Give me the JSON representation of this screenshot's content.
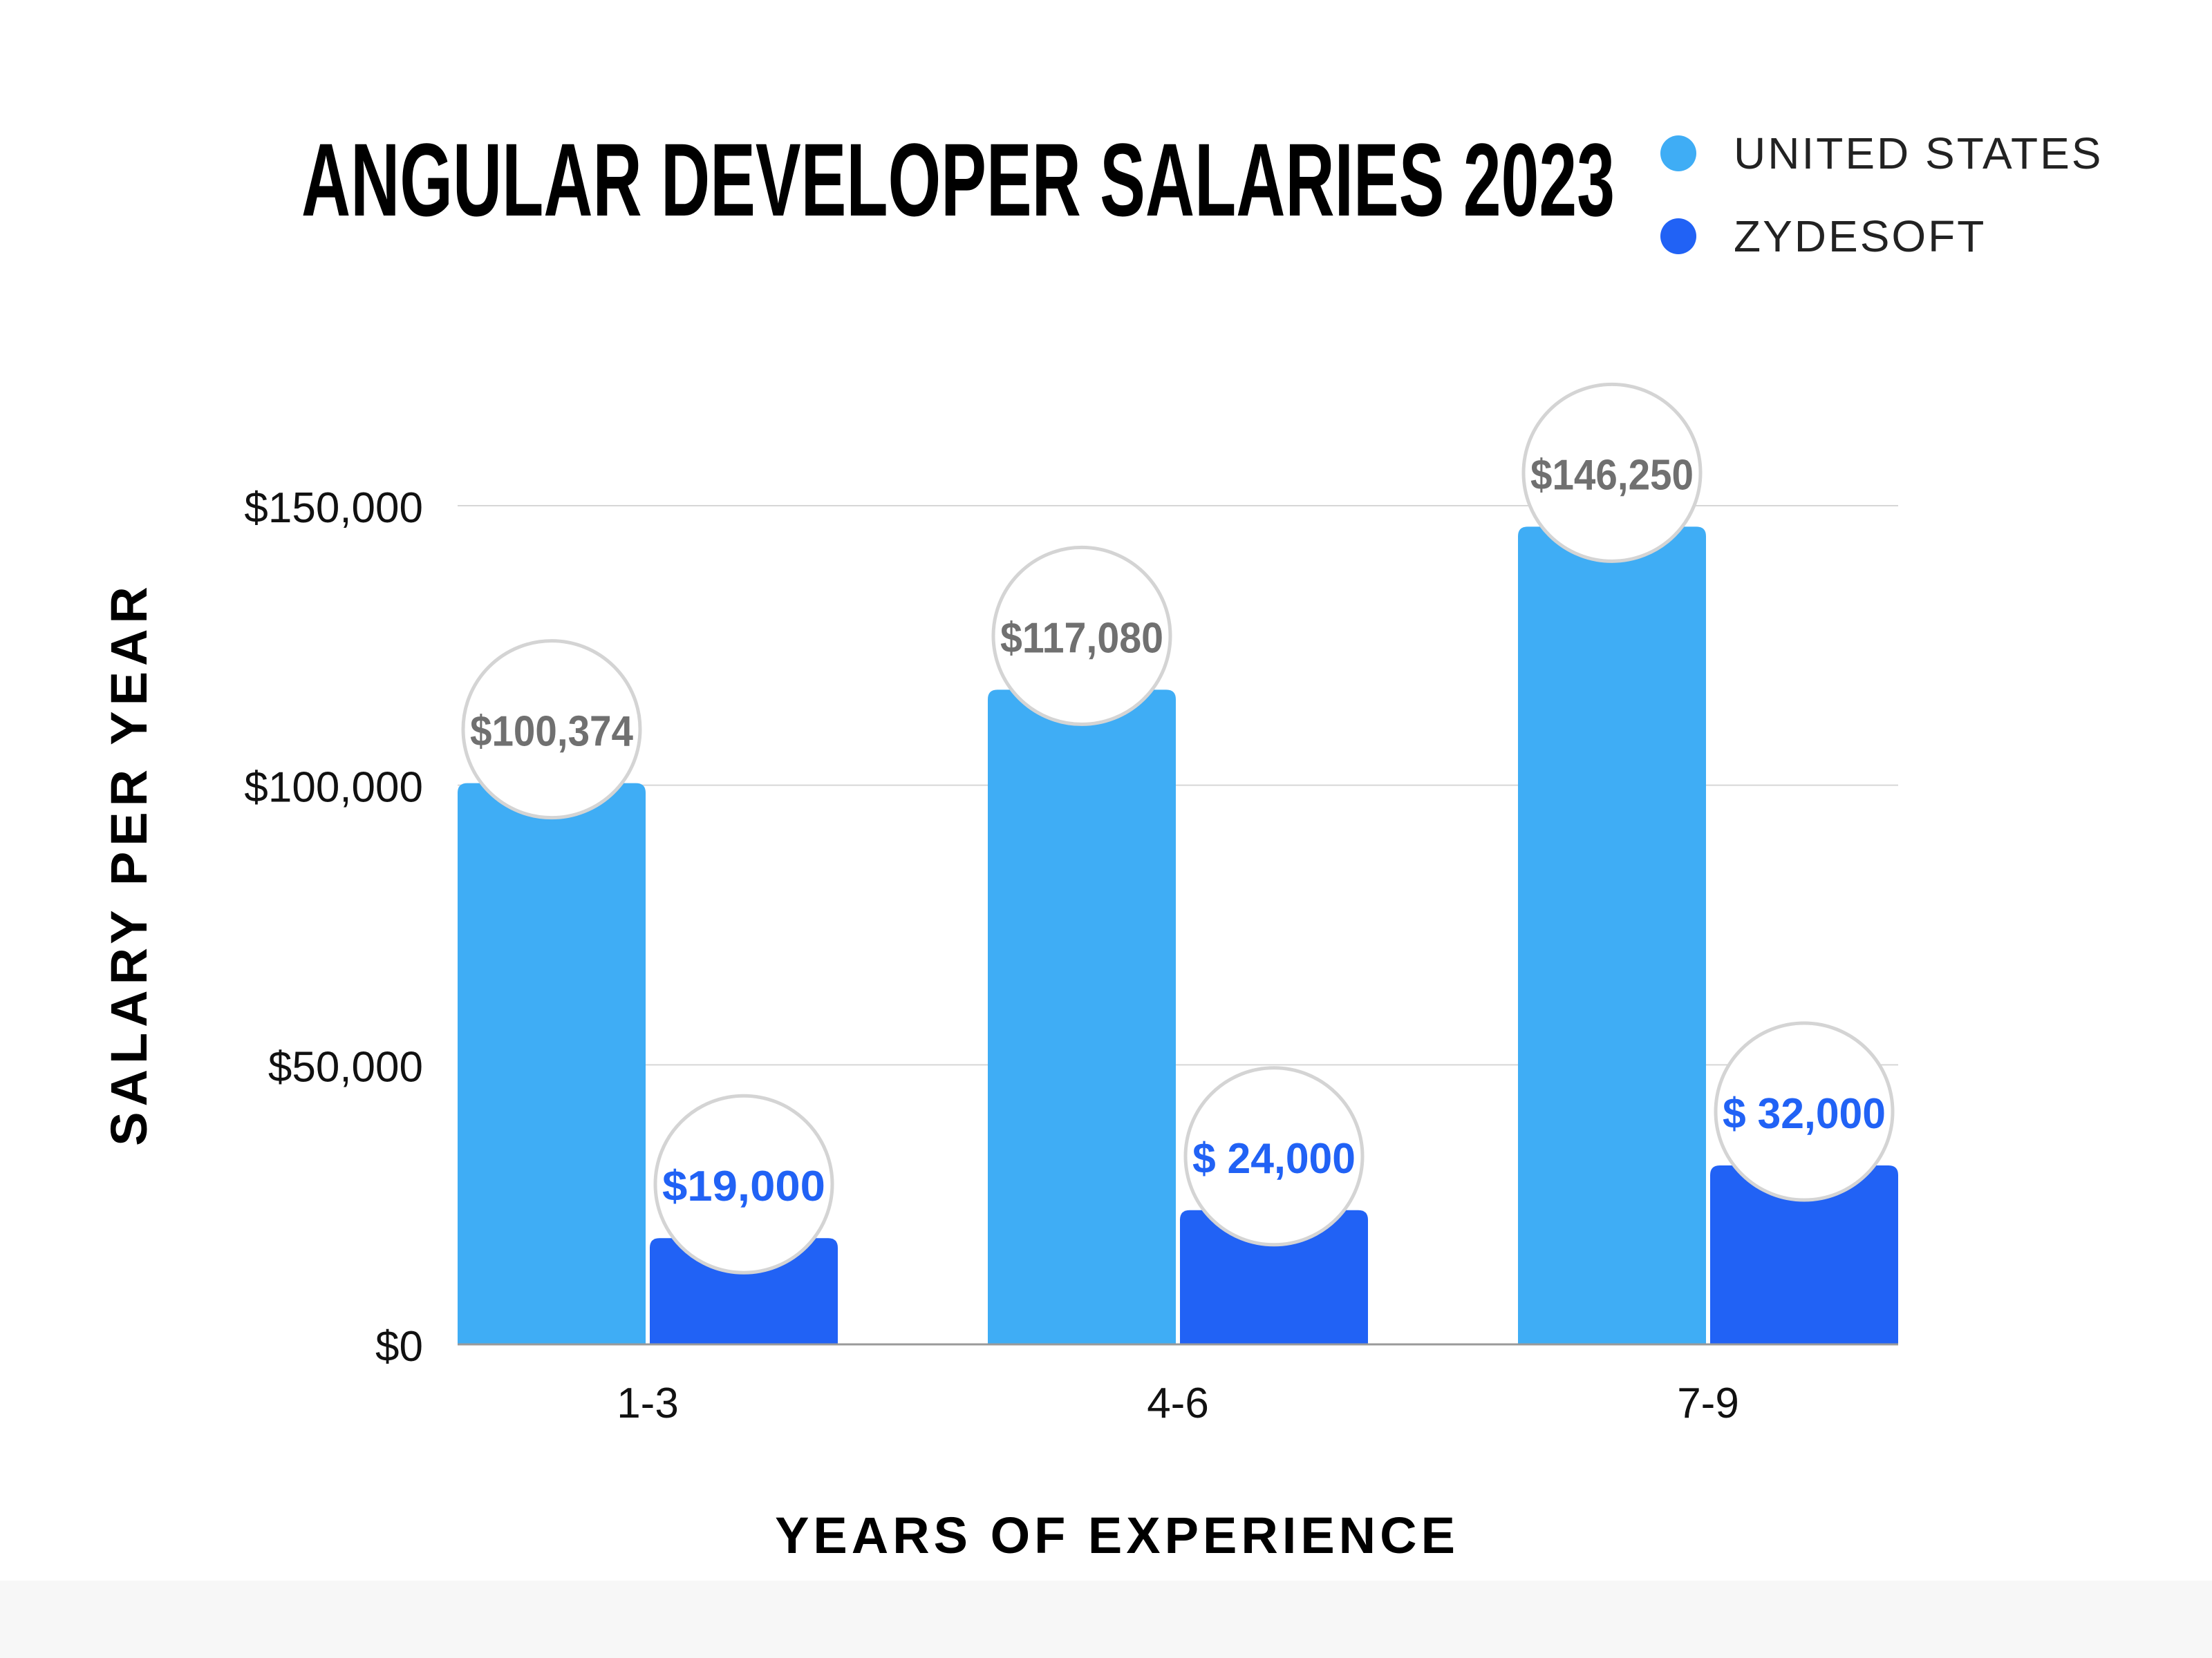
{
  "chart_data": {
    "type": "bar",
    "title": "ANGULAR DEVELOPER SALARIES 2023",
    "xlabel": "YEARS OF EXPERIENCE",
    "ylabel": "SALARY PER YEAR",
    "categories": [
      "1-3",
      "4-6",
      "7-9"
    ],
    "series": [
      {
        "name": "UNITED STATES",
        "color": "#3fadf5",
        "values": [
          100374,
          117080,
          146250
        ],
        "data_labels": [
          "$100,374",
          "$117,080",
          "$146,250"
        ],
        "label_color": "#707070"
      },
      {
        "name": "ZYDESOFT",
        "color": "#2162f5",
        "values": [
          19000,
          24000,
          32000
        ],
        "data_labels": [
          "$19,000",
          "$ 24,000",
          "$ 32,000"
        ],
        "label_color": "#2162f5"
      }
    ],
    "ylim": [
      0,
      150000
    ],
    "yticks": [
      0,
      50000,
      100000,
      150000
    ],
    "ytick_labels": [
      "$0",
      "$50,000",
      "$100,000",
      "$150,000"
    ],
    "grid": true,
    "legend": "top-right"
  }
}
